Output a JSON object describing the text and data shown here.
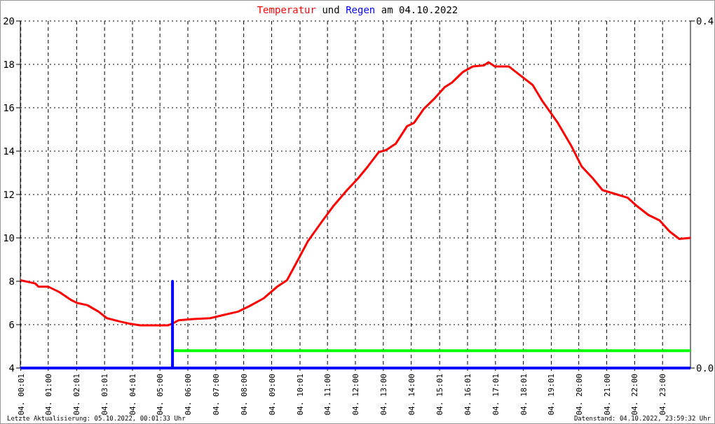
{
  "chart_data": {
    "type": "line",
    "title": "Temperatur und Regen am 04.10.2022",
    "xlim": [
      "2022-10-04T00:00",
      "2022-10-05T00:00"
    ],
    "xticks": [
      {
        "value": "2022-10-04T00:01",
        "label": "04. 00:01"
      },
      {
        "value": "2022-10-04T01:00",
        "label": "04. 01:00"
      },
      {
        "value": "2022-10-04T02:01",
        "label": "04. 02:01"
      },
      {
        "value": "2022-10-04T03:01",
        "label": "04. 03:01"
      },
      {
        "value": "2022-10-04T04:01",
        "label": "04. 04:01"
      },
      {
        "value": "2022-10-04T05:00",
        "label": "04. 05:00"
      },
      {
        "value": "2022-10-04T06:00",
        "label": "04. 06:00"
      },
      {
        "value": "2022-10-04T07:00",
        "label": "04. 07:00"
      },
      {
        "value": "2022-10-04T08:00",
        "label": "04. 08:00"
      },
      {
        "value": "2022-10-04T09:00",
        "label": "04. 09:00"
      },
      {
        "value": "2022-10-04T10:01",
        "label": "04. 10:01"
      },
      {
        "value": "2022-10-04T11:00",
        "label": "04. 11:00"
      },
      {
        "value": "2022-10-04T12:00",
        "label": "04. 12:00"
      },
      {
        "value": "2022-10-04T13:00",
        "label": "04. 13:00"
      },
      {
        "value": "2022-10-04T14:00",
        "label": "04. 14:00"
      },
      {
        "value": "2022-10-04T15:01",
        "label": "04. 15:01"
      },
      {
        "value": "2022-10-04T16:01",
        "label": "04. 16:01"
      },
      {
        "value": "2022-10-04T17:01",
        "label": "04. 17:01"
      },
      {
        "value": "2022-10-04T18:01",
        "label": "04. 18:01"
      },
      {
        "value": "2022-10-04T19:01",
        "label": "04. 19:01"
      },
      {
        "value": "2022-10-04T20:00",
        "label": "04. 20:00"
      },
      {
        "value": "2022-10-04T21:00",
        "label": "04. 21:00"
      },
      {
        "value": "2022-10-04T22:00",
        "label": "04. 22:00"
      },
      {
        "value": "2022-10-04T23:00",
        "label": "04. 23:00"
      }
    ],
    "ylim": [
      4,
      20
    ],
    "yticks": [
      4,
      6,
      8,
      10,
      12,
      14,
      16,
      18,
      20
    ],
    "y2lim": [
      0,
      0.4
    ],
    "y2ticks": [
      {
        "value": 0,
        "label": "0.0"
      },
      {
        "value": 0.4,
        "label": "0.4"
      }
    ],
    "grid": true,
    "marker": "none",
    "series": [
      {
        "color": "#ff0000",
        "x": [
          "2022-10-04T00:00",
          "2022-10-04T00:32",
          "2022-10-04T00:39",
          "2022-10-04T01:00",
          "2022-10-04T01:24",
          "2022-10-04T01:48",
          "2022-10-04T02:02",
          "2022-10-04T02:24",
          "2022-10-04T02:48",
          "2022-10-04T03:06",
          "2022-10-04T03:33",
          "2022-10-04T03:54",
          "2022-10-04T04:18",
          "2022-10-04T04:48",
          "2022-10-04T05:18",
          "2022-10-04T05:27",
          "2022-10-04T05:40",
          "2022-10-04T06:12",
          "2022-10-04T06:48",
          "2022-10-04T07:18",
          "2022-10-04T07:48",
          "2022-10-04T08:12",
          "2022-10-04T08:42",
          "2022-10-04T09:12",
          "2022-10-04T09:33",
          "2022-10-04T09:57",
          "2022-10-04T10:18",
          "2022-10-04T10:48",
          "2022-10-04T11:12",
          "2022-10-04T11:42",
          "2022-10-04T12:06",
          "2022-10-04T12:27",
          "2022-10-04T12:50",
          "2022-10-04T13:06",
          "2022-10-04T13:27",
          "2022-10-04T13:51",
          "2022-10-04T14:06",
          "2022-10-04T14:27",
          "2022-10-04T14:51",
          "2022-10-04T15:12",
          "2022-10-04T15:27",
          "2022-10-04T15:51",
          "2022-10-04T16:12",
          "2022-10-04T16:36",
          "2022-10-04T16:46",
          "2022-10-04T17:00",
          "2022-10-04T17:30",
          "2022-10-04T18:00",
          "2022-10-04T18:21",
          "2022-10-04T18:42",
          "2022-10-04T19:15",
          "2022-10-04T19:45",
          "2022-10-04T20:06",
          "2022-10-04T20:30",
          "2022-10-04T20:51",
          "2022-10-04T21:15",
          "2022-10-04T21:45",
          "2022-10-04T22:06",
          "2022-10-04T22:30",
          "2022-10-04T22:54",
          "2022-10-04T23:15",
          "2022-10-04T23:36",
          "2022-10-05T00:00"
        ],
        "values": [
          8.05,
          7.9,
          7.75,
          7.75,
          7.5,
          7.15,
          7.0,
          6.9,
          6.6,
          6.3,
          6.15,
          6.05,
          5.97,
          5.97,
          5.97,
          6.05,
          6.2,
          6.26,
          6.3,
          6.45,
          6.6,
          6.85,
          7.2,
          7.75,
          8.05,
          9.0,
          9.85,
          10.75,
          11.45,
          12.2,
          12.75,
          13.3,
          13.95,
          14.05,
          14.35,
          15.15,
          15.3,
          15.95,
          16.45,
          16.95,
          17.15,
          17.65,
          17.9,
          17.95,
          18.1,
          17.9,
          17.9,
          17.4,
          17.05,
          16.3,
          15.3,
          14.2,
          13.3,
          12.75,
          12.2,
          12.05,
          11.85,
          11.45,
          11.05,
          10.8,
          10.3,
          9.95,
          10.0
        ]
      },
      {
        "color": "#0000ff",
        "axis": "y2",
        "x": [
          "2022-10-04T00:00",
          "2022-10-04T05:27",
          "2022-10-04T05:27",
          "2022-10-04T05:27",
          "2022-10-05T00:00"
        ],
        "values": [
          0,
          0,
          0.1,
          0,
          0
        ]
      },
      {
        "color": "#00ff00",
        "axis": "y2",
        "x": [
          "2022-10-04T05:30",
          "2022-10-05T00:00"
        ],
        "values": [
          0.02,
          0.02
        ]
      }
    ],
    "annotations": [
      "Letzte Aktualisierung: 05.10.2022, 00:01:33 Uhr",
      "Datenstand: 04.10.2022, 23:59:32 Uhr"
    ]
  }
}
